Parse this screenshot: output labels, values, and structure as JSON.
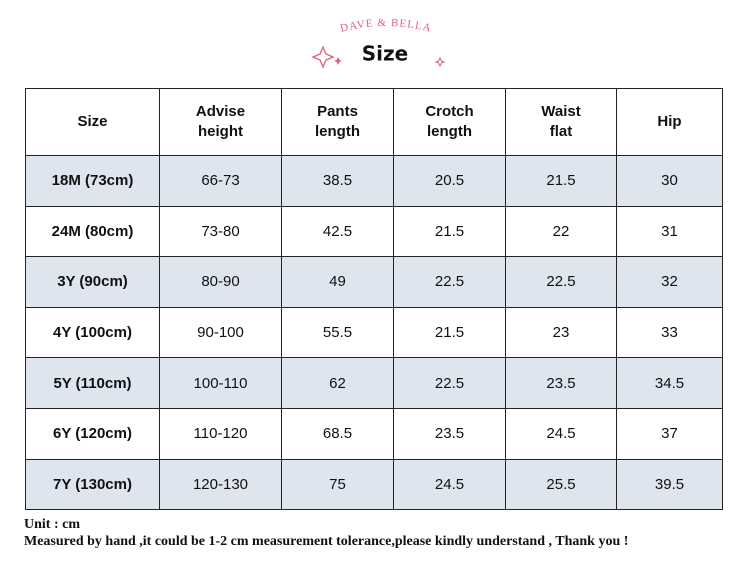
{
  "header": {
    "brand": "DAVE & BELLA",
    "title": "Size"
  },
  "table": {
    "header": [
      [
        "Size"
      ],
      [
        "Advise",
        "height"
      ],
      [
        "Pants",
        "length"
      ],
      [
        "Crotch",
        "length"
      ],
      [
        "Waist",
        "flat"
      ],
      [
        "Hip"
      ]
    ],
    "rows": [
      [
        "18M (73cm)",
        "66-73",
        "38.5",
        "20.5",
        "21.5",
        "30"
      ],
      [
        "24M (80cm)",
        "73-80",
        "42.5",
        "21.5",
        "22",
        "31"
      ],
      [
        "3Y (90cm)",
        "80-90",
        "49",
        "22.5",
        "22.5",
        "32"
      ],
      [
        "4Y (100cm)",
        "90-100",
        "55.5",
        "21.5",
        "23",
        "33"
      ],
      [
        "5Y (110cm)",
        "100-110",
        "62",
        "22.5",
        "23.5",
        "34.5"
      ],
      [
        "6Y (120cm)",
        "110-120",
        "68.5",
        "23.5",
        "24.5",
        "37"
      ],
      [
        "7Y (130cm)",
        "120-130",
        "75",
        "24.5",
        "25.5",
        "39.5"
      ]
    ]
  },
  "footer": {
    "unit": "Unit : cm",
    "note": "Measured by hand ,it could be 1-2 cm measurement tolerance,please kindly understand , Thank you !"
  }
}
